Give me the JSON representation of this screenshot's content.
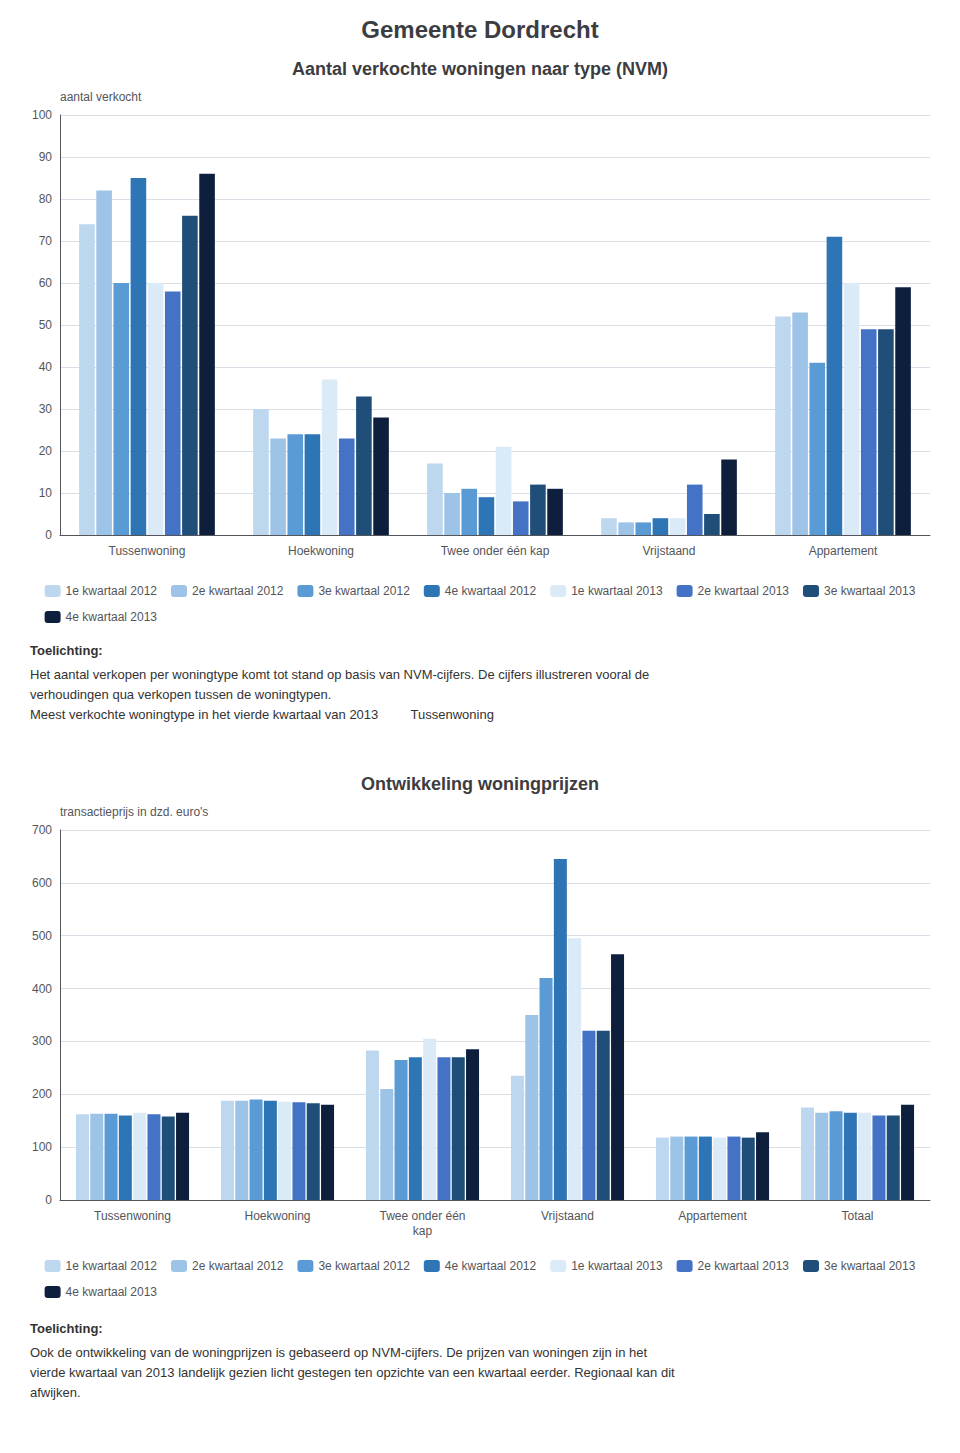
{
  "title": "Gemeente Dordrecht",
  "chart_data": [
    {
      "type": "bar",
      "title": "Aantal verkochte woningen naar type (NVM)",
      "ylabel": "aantal verkocht",
      "categories": [
        "Tussenwoning",
        "Hoekwoning",
        "Twee onder één kap",
        "Vrijstaand",
        "Appartement"
      ],
      "series": [
        {
          "name": "1e kwartaal 2012",
          "color": "#BDD7EE",
          "values": [
            74,
            30,
            17,
            4,
            52
          ]
        },
        {
          "name": "2e kwartaal 2012",
          "color": "#9DC3E6",
          "values": [
            82,
            23,
            10,
            3,
            53
          ]
        },
        {
          "name": "3e kwartaal 2012",
          "color": "#5B9BD5",
          "values": [
            60,
            24,
            11,
            3,
            41
          ]
        },
        {
          "name": "4e kwartaal 2012",
          "color": "#2E75B6",
          "values": [
            85,
            24,
            9,
            4,
            71
          ]
        },
        {
          "name": "1e kwartaal 2013",
          "color": "#DBEAF7",
          "values": [
            60,
            37,
            21,
            4,
            60
          ]
        },
        {
          "name": "2e kwartaal 2013",
          "color": "#4472C4",
          "values": [
            58,
            23,
            8,
            12,
            49
          ]
        },
        {
          "name": "3e kwartaal 2013",
          "color": "#1F4E79",
          "values": [
            76,
            33,
            12,
            5,
            49
          ]
        },
        {
          "name": "4e kwartaal 2013",
          "color": "#0D1F3C",
          "values": [
            86,
            28,
            11,
            18,
            59
          ]
        }
      ],
      "ylim": [
        0,
        100
      ],
      "yticks": [
        0,
        10,
        20,
        30,
        40,
        50,
        60,
        70,
        80,
        90,
        100
      ],
      "grid": true,
      "legend": "bottom",
      "annotations": [
        "Toelichting:",
        "Het aantal verkopen per woningtype komt tot stand op basis van NVM-cijfers. De cijfers illustreren vooral de\nverhoudingen qua verkopen tussen de woningtypen.\nMeest verkochte woningtype in het vierde kwartaal van 2013         Tussenwoning"
      ]
    },
    {
      "type": "bar",
      "title": "Ontwikkeling woningprijzen",
      "ylabel": "transactieprijs in dzd. euro's",
      "categories": [
        "Tussenwoning",
        "Hoekwoning",
        "Twee onder één\nkap",
        "Vrijstaand",
        "Appartement",
        "Totaal"
      ],
      "series": [
        {
          "name": "1e kwartaal 2012",
          "color": "#BDD7EE",
          "values": [
            162,
            188,
            283,
            235,
            118,
            175
          ]
        },
        {
          "name": "2e kwartaal 2012",
          "color": "#9DC3E6",
          "values": [
            163,
            188,
            210,
            350,
            120,
            165
          ]
        },
        {
          "name": "3e kwartaal 2012",
          "color": "#5B9BD5",
          "values": [
            163,
            190,
            265,
            420,
            120,
            168
          ]
        },
        {
          "name": "4e kwartaal 2012",
          "color": "#2E75B6",
          "values": [
            160,
            188,
            270,
            645,
            120,
            165
          ]
        },
        {
          "name": "1e kwartaal 2013",
          "color": "#DBEAF7",
          "values": [
            165,
            186,
            305,
            495,
            118,
            165
          ]
        },
        {
          "name": "2e kwartaal 2013",
          "color": "#4472C4",
          "values": [
            162,
            185,
            270,
            320,
            120,
            160
          ]
        },
        {
          "name": "3e kwartaal 2013",
          "color": "#1F4E79",
          "values": [
            158,
            183,
            270,
            320,
            118,
            160
          ]
        },
        {
          "name": "4e kwartaal 2013",
          "color": "#0D1F3C",
          "values": [
            165,
            180,
            285,
            465,
            128,
            180
          ]
        }
      ],
      "ylim": [
        0,
        700
      ],
      "yticks": [
        0,
        100,
        200,
        300,
        400,
        500,
        600,
        700
      ],
      "grid": true,
      "legend": "bottom",
      "annotations": [
        "Toelichting:",
        "Ook de ontwikkeling van de woningprijzen is gebaseerd op NVM-cijfers. De prijzen van woningen zijn in het\nvierde kwartaal van 2013 landelijk gezien licht gestegen ten opzichte van een kwartaal eerder. Regionaal kan dit\nafwijken."
      ]
    }
  ]
}
